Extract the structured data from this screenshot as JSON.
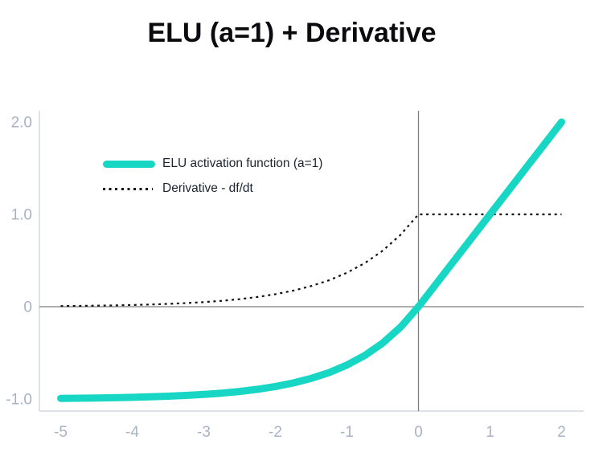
{
  "chart_data": {
    "type": "line",
    "title": "ELU (a=1) + Derivative",
    "xlabel": "",
    "ylabel": "",
    "grid": false,
    "legend_position": "inside-top-left",
    "xlim": [
      -5.3,
      2.31
    ],
    "ylim": [
      -1.13,
      2.12
    ],
    "x_ticks": {
      "values": [
        -5,
        -4,
        -3,
        -2,
        -1,
        0,
        1,
        2
      ],
      "labels": [
        "-5",
        "-4",
        "-3",
        "-2",
        "-1",
        "0",
        "1",
        "2"
      ]
    },
    "y_ticks": {
      "values": [
        2,
        1,
        0,
        -1
      ],
      "labels": [
        "2.0",
        "1.0",
        "0",
        "-1.0"
      ]
    },
    "x": [
      -5,
      -4.75,
      -4.5,
      -4.25,
      -4,
      -3.75,
      -3.5,
      -3.25,
      -3,
      -2.75,
      -2.5,
      -2.25,
      -2,
      -1.75,
      -1.5,
      -1.25,
      -1,
      -0.75,
      -0.5,
      -0.25,
      0,
      0.25,
      0.5,
      0.75,
      1,
      1.25,
      1.5,
      1.75,
      2
    ],
    "series": [
      {
        "name": "ELU activation function (a=1)",
        "color": "#17d7c4",
        "line_style": "solid",
        "stroke_width": 9,
        "values": [
          -0.9933,
          -0.9913,
          -0.9889,
          -0.9857,
          -0.9817,
          -0.9765,
          -0.9698,
          -0.9612,
          -0.9502,
          -0.9361,
          -0.9179,
          -0.8946,
          -0.8647,
          -0.8262,
          -0.7769,
          -0.7135,
          -0.6321,
          -0.5276,
          -0.3935,
          -0.2212,
          0,
          0.25,
          0.5,
          0.75,
          1,
          1.25,
          1.5,
          1.75,
          2
        ]
      },
      {
        "name": "Derivative - df/dt",
        "color": "#111111",
        "line_style": "dotted",
        "stroke_width": 2.2,
        "values": [
          0.0067,
          0.0087,
          0.0111,
          0.0143,
          0.0183,
          0.0235,
          0.0302,
          0.0388,
          0.0498,
          0.0639,
          0.0821,
          0.1054,
          0.1353,
          0.1738,
          0.2231,
          0.2865,
          0.3679,
          0.4724,
          0.6065,
          0.7788,
          1,
          1,
          1,
          1,
          1,
          1,
          1,
          1,
          1
        ]
      }
    ],
    "colors": {
      "axis_border": "#d2d9e3",
      "zero_line": "#7e7e7e",
      "tick_label": "#a8b2c4",
      "title": "#0b0b0f",
      "legend_text": "#1c2430",
      "background": "#ffffff"
    }
  }
}
